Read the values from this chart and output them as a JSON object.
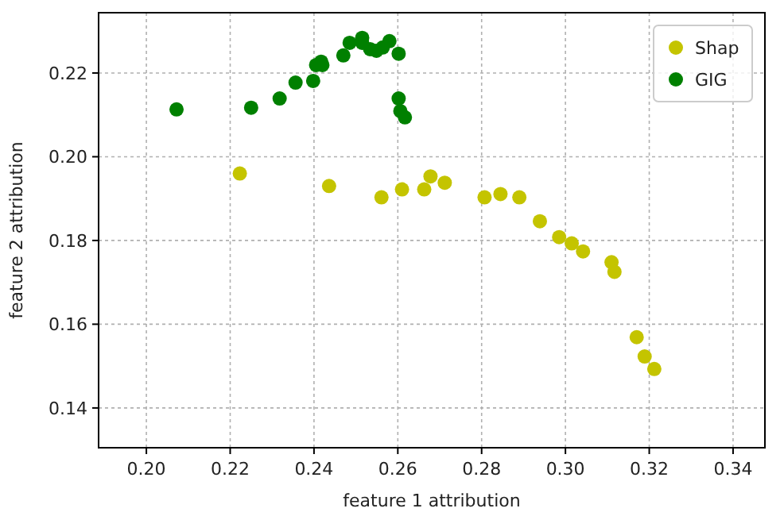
{
  "chart_data": {
    "type": "scatter",
    "xlabel": "feature 1 attribution",
    "ylabel": "feature 2 attribution",
    "xlim": [
      0.1886,
      0.3476
    ],
    "ylim": [
      0.1305,
      0.2344
    ],
    "xticks": [
      {
        "value": 0.2,
        "label": "0.20"
      },
      {
        "value": 0.22,
        "label": "0.22"
      },
      {
        "value": 0.24,
        "label": "0.24"
      },
      {
        "value": 0.26,
        "label": "0.26"
      },
      {
        "value": 0.28,
        "label": "0.28"
      },
      {
        "value": 0.3,
        "label": "0.30"
      },
      {
        "value": 0.32,
        "label": "0.32"
      },
      {
        "value": 0.34,
        "label": "0.34"
      }
    ],
    "yticks": [
      0.14,
      0.16,
      0.18,
      {
        "value": 0.2,
        "label": "0.20"
      },
      0.22
    ],
    "grid": true,
    "legend": "top right",
    "marker": "circle",
    "series": [
      {
        "name": "Shap",
        "color": "#c4c400",
        "x": [
          0.2223,
          0.2436,
          0.2561,
          0.261,
          0.2663,
          0.2678,
          0.2712,
          0.2807,
          0.2845,
          0.289,
          0.2939,
          0.2985,
          0.3015,
          0.3042,
          0.311,
          0.3117,
          0.317,
          0.3189,
          0.3212
        ],
        "values": [
          0.196,
          0.193,
          0.1903,
          0.1922,
          0.1922,
          0.1953,
          0.1938,
          0.1903,
          0.1911,
          0.1903,
          0.1846,
          0.1808,
          0.1793,
          0.1774,
          0.1748,
          0.1725,
          0.1569,
          0.1523,
          0.1493
        ]
      },
      {
        "name": "GIG",
        "color": "#008000",
        "x": [
          0.2072,
          0.225,
          0.2318,
          0.2356,
          0.2398,
          0.2405,
          0.242,
          0.2417,
          0.247,
          0.2485,
          0.2515,
          0.2515,
          0.2534,
          0.2549,
          0.2564,
          0.258,
          0.2602,
          0.2602,
          0.2606,
          0.2617
        ],
        "values": [
          0.2113,
          0.2117,
          0.2139,
          0.2177,
          0.2181,
          0.2219,
          0.2219,
          0.2227,
          0.2242,
          0.2272,
          0.2284,
          0.2272,
          0.2257,
          0.2253,
          0.2261,
          0.2276,
          0.2246,
          0.2139,
          0.2109,
          0.2094
        ]
      }
    ]
  }
}
